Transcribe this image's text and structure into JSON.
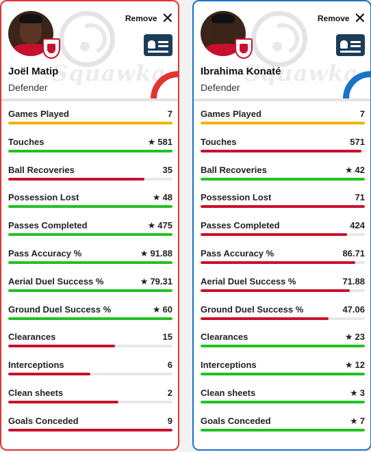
{
  "players": [
    {
      "name": "Joël Matip",
      "position": "Defender",
      "remove_label": "Remove",
      "watermark": "Squawka",
      "accent": "#e53232",
      "skin": "#5a3424",
      "stats": [
        {
          "label": "Games Played",
          "value": "7",
          "star": false,
          "fill": 1.0,
          "color": "#f0b400"
        },
        {
          "label": "Touches",
          "value": "581",
          "star": true,
          "fill": 1.0,
          "color": "#22c122"
        },
        {
          "label": "Ball Recoveries",
          "value": "35",
          "star": false,
          "fill": 0.83,
          "color": "#c8102e"
        },
        {
          "label": "Possession Lost",
          "value": "48",
          "star": true,
          "fill": 1.0,
          "color": "#22c122"
        },
        {
          "label": "Passes Completed",
          "value": "475",
          "star": true,
          "fill": 1.0,
          "color": "#22c122"
        },
        {
          "label": "Pass Accuracy %",
          "value": "91.88",
          "star": true,
          "fill": 1.0,
          "color": "#22c122"
        },
        {
          "label": "Aerial Duel Success %",
          "value": "79.31",
          "star": true,
          "fill": 1.0,
          "color": "#22c122"
        },
        {
          "label": "Ground Duel Success %",
          "value": "60",
          "star": true,
          "fill": 1.0,
          "color": "#22c122"
        },
        {
          "label": "Clearances",
          "value": "15",
          "star": false,
          "fill": 0.65,
          "color": "#c8102e"
        },
        {
          "label": "Interceptions",
          "value": "6",
          "star": false,
          "fill": 0.5,
          "color": "#c8102e"
        },
        {
          "label": "Clean sheets",
          "value": "2",
          "star": false,
          "fill": 0.67,
          "color": "#c8102e"
        },
        {
          "label": "Goals Conceded",
          "value": "9",
          "star": false,
          "fill": 1.0,
          "color": "#c8102e"
        }
      ]
    },
    {
      "name": "Ibrahima Konaté",
      "position": "Defender",
      "remove_label": "Remove",
      "watermark": "Squawka",
      "accent": "#1a73c9",
      "skin": "#3a2418",
      "stats": [
        {
          "label": "Games Played",
          "value": "7",
          "star": false,
          "fill": 1.0,
          "color": "#f0b400"
        },
        {
          "label": "Touches",
          "value": "571",
          "star": false,
          "fill": 0.98,
          "color": "#c8102e"
        },
        {
          "label": "Ball Recoveries",
          "value": "42",
          "star": true,
          "fill": 1.0,
          "color": "#22c122"
        },
        {
          "label": "Possession Lost",
          "value": "71",
          "star": false,
          "fill": 1.0,
          "color": "#c8102e"
        },
        {
          "label": "Passes Completed",
          "value": "424",
          "star": false,
          "fill": 0.89,
          "color": "#c8102e"
        },
        {
          "label": "Pass Accuracy %",
          "value": "86.71",
          "star": false,
          "fill": 0.94,
          "color": "#c8102e"
        },
        {
          "label": "Aerial Duel Success %",
          "value": "71.88",
          "star": false,
          "fill": 0.91,
          "color": "#c8102e"
        },
        {
          "label": "Ground Duel Success %",
          "value": "47.06",
          "star": false,
          "fill": 0.78,
          "color": "#c8102e"
        },
        {
          "label": "Clearances",
          "value": "23",
          "star": true,
          "fill": 1.0,
          "color": "#22c122"
        },
        {
          "label": "Interceptions",
          "value": "12",
          "star": true,
          "fill": 1.0,
          "color": "#22c122"
        },
        {
          "label": "Clean sheets",
          "value": "3",
          "star": true,
          "fill": 1.0,
          "color": "#22c122"
        },
        {
          "label": "Goals Conceded",
          "value": "7",
          "star": true,
          "fill": 1.0,
          "color": "#22c122"
        }
      ]
    }
  ]
}
